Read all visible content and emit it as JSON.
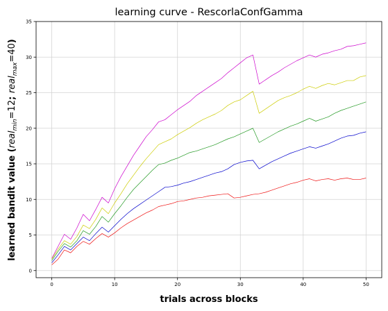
{
  "chart_data": {
    "type": "line",
    "title": "learning curve - RescorlaConfGamma",
    "xlabel": "trials across blocks",
    "ylabel": "learned bandit value ($real_{min}=12$; $real_{max}=40$)",
    "xlim": [
      -2.5,
      52.5
    ],
    "ylim": [
      -1,
      35
    ],
    "xticks": [
      0,
      10,
      20,
      30,
      40,
      50
    ],
    "yticks": [
      0,
      5,
      10,
      15,
      20,
      25,
      30,
      35
    ],
    "grid": true,
    "x": [
      0,
      1,
      2,
      3,
      4,
      5,
      6,
      7,
      8,
      9,
      10,
      11,
      12,
      13,
      14,
      15,
      16,
      17,
      18,
      19,
      20,
      21,
      22,
      23,
      24,
      25,
      26,
      27,
      28,
      29,
      30,
      31,
      32,
      33,
      34,
      35,
      36,
      37,
      38,
      39,
      40,
      41,
      42,
      43,
      44,
      45,
      46,
      47,
      48,
      49,
      50
    ],
    "series": [
      {
        "color": "#cc00cc",
        "values": [
          1.7,
          3.4,
          5.1,
          4.4,
          6.0,
          7.9,
          7.0,
          8.6,
          10.3,
          9.5,
          11.5,
          13.2,
          14.7,
          16.2,
          17.5,
          18.8,
          19.8,
          20.9,
          21.2,
          21.9,
          22.6,
          23.2,
          23.8,
          24.6,
          25.2,
          25.8,
          26.4,
          27.0,
          27.8,
          28.5,
          29.2,
          29.9,
          30.3,
          26.2,
          26.8,
          27.4,
          27.9,
          28.5,
          29.0,
          29.5,
          29.9,
          30.3,
          30.0,
          30.4,
          30.6,
          30.9,
          31.1,
          31.5,
          31.6,
          31.8,
          32.0
        ]
      },
      {
        "color": "#cccc00",
        "values": [
          1.6,
          3.0,
          4.2,
          3.7,
          4.8,
          6.4,
          5.9,
          7.2,
          8.8,
          8.0,
          9.5,
          10.8,
          12.2,
          13.4,
          14.6,
          15.7,
          16.7,
          17.7,
          18.1,
          18.5,
          19.1,
          19.6,
          20.1,
          20.7,
          21.2,
          21.6,
          22.0,
          22.5,
          23.2,
          23.7,
          24.0,
          24.6,
          25.2,
          22.1,
          22.7,
          23.3,
          23.9,
          24.3,
          24.6,
          25.0,
          25.5,
          25.9,
          25.6,
          26.0,
          26.3,
          26.1,
          26.4,
          26.7,
          26.7,
          27.2,
          27.4
        ]
      },
      {
        "color": "#229922",
        "values": [
          1.4,
          2.7,
          3.8,
          3.3,
          4.2,
          5.6,
          5.1,
          6.2,
          7.6,
          6.8,
          8.0,
          9.1,
          10.3,
          11.4,
          12.3,
          13.2,
          14.1,
          14.9,
          15.1,
          15.5,
          15.8,
          16.2,
          16.6,
          16.8,
          17.1,
          17.4,
          17.7,
          18.1,
          18.5,
          18.8,
          19.2,
          19.6,
          20.0,
          18.0,
          18.5,
          19.0,
          19.5,
          19.9,
          20.3,
          20.6,
          21.0,
          21.4,
          21.0,
          21.3,
          21.6,
          22.1,
          22.5,
          22.8,
          23.1,
          23.4,
          23.7
        ]
      },
      {
        "color": "#0000cc",
        "values": [
          1.1,
          2.2,
          3.4,
          2.9,
          3.8,
          4.7,
          4.2,
          5.2,
          6.1,
          5.4,
          6.3,
          7.2,
          8.0,
          8.7,
          9.3,
          9.9,
          10.5,
          11.1,
          11.7,
          11.8,
          12.0,
          12.3,
          12.5,
          12.8,
          13.1,
          13.4,
          13.7,
          13.9,
          14.3,
          14.9,
          15.2,
          15.4,
          15.5,
          14.3,
          14.8,
          15.3,
          15.7,
          16.1,
          16.5,
          16.8,
          17.1,
          17.4,
          17.2,
          17.5,
          17.8,
          18.2,
          18.6,
          18.9,
          19.0,
          19.3,
          19.5
        ]
      },
      {
        "color": "#ee1111",
        "values": [
          0.8,
          1.6,
          2.9,
          2.5,
          3.4,
          4.1,
          3.7,
          4.5,
          5.2,
          4.7,
          5.3,
          6.0,
          6.6,
          7.1,
          7.6,
          8.1,
          8.5,
          9.0,
          9.2,
          9.4,
          9.7,
          9.8,
          10.0,
          10.2,
          10.3,
          10.5,
          10.6,
          10.7,
          10.8,
          10.2,
          10.3,
          10.5,
          10.7,
          10.8,
          11.0,
          11.3,
          11.6,
          11.9,
          12.2,
          12.4,
          12.7,
          12.9,
          12.6,
          12.8,
          12.9,
          12.7,
          12.9,
          13.0,
          12.8,
          12.8,
          13.0
        ]
      }
    ]
  }
}
